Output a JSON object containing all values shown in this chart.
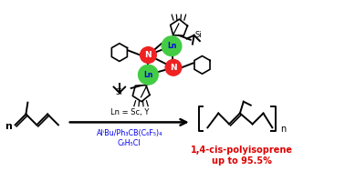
{
  "background_color": "#ffffff",
  "reagent_line1": "AlⁱBu/Ph₃CB(C₆F₅)₄",
  "reagent_line2": "C₆H₅Cl",
  "catalyst_label": "Ln = Sc, Y",
  "product_label1": "1,4-cis-polyisoprene",
  "product_label2": "up to 95.5%",
  "reagent_color": "#0000ee",
  "product_label_color": "#dd0000",
  "arrow_color": "#000000",
  "Ln_color": "#44cc44",
  "N_color": "#ee2222",
  "Ln_text_color": "#0000dd",
  "N_text_color": "#ffffff",
  "figsize": [
    3.78,
    1.88
  ],
  "dpi": 100
}
